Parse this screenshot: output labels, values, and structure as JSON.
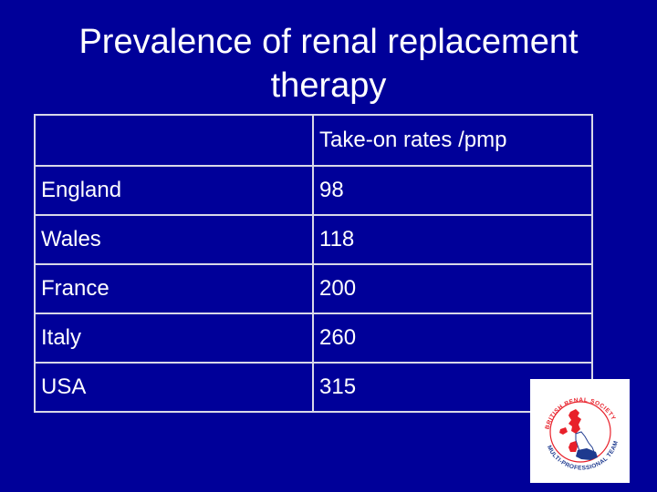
{
  "slide": {
    "title": "Prevalence of renal replacement therapy"
  },
  "table": {
    "header": [
      "",
      "Take-on rates /pmp"
    ],
    "rows": [
      {
        "country": "England",
        "rate": "98"
      },
      {
        "country": "Wales",
        "rate": "118"
      },
      {
        "country": "France",
        "rate": "200"
      },
      {
        "country": "Italy",
        "rate": "260"
      },
      {
        "country": "USA",
        "rate": "315"
      }
    ]
  },
  "logo": {
    "icon": "british-renal-society-logo",
    "text_top": "BRITISH RENAL SOCIETY",
    "text_bottom": "MULTI-PROFESSIONAL TEAM"
  },
  "colors": {
    "background": "#000099",
    "text": "#ffffff",
    "logo_red": "#e8202a",
    "logo_blue": "#1e3a8f"
  }
}
